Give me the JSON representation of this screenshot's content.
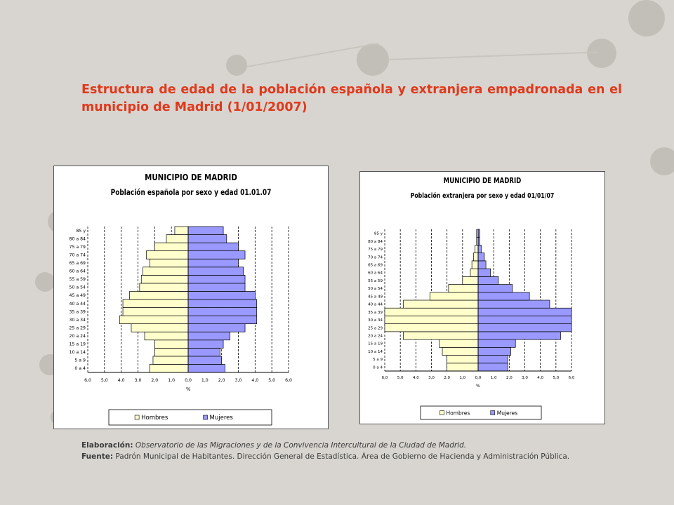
{
  "title": "Estructura de edad de la población española y extranjera empadronada en el municipio de Madrid (1/01/2007)",
  "footer": {
    "elab_label": "Elaboración:",
    "elab_text": "Observatorio de las Migraciones y de la Convivencia Intercultural de la Ciudad de Madrid.",
    "source_label": "Fuente:",
    "source_text": "Padrón Municipal de Habitantes. Dirección General de Estadística. Área de Gobierno de Hacienda y Administración Pública."
  },
  "colors": {
    "background": "#d8d5d0",
    "title": "#e0391c",
    "hombres": "#ffffcc",
    "mujeres": "#9999ff"
  },
  "chart_data": [
    {
      "type": "bar",
      "orientation": "horizontal-pyramid",
      "title": "MUNICIPIO DE MADRID",
      "subtitle": "Población española por sexo y edad 01.01.07",
      "xlabel": "%",
      "xlim": [
        -6.0,
        6.0
      ],
      "xticks": [
        "6,0",
        "5,0",
        "4,0",
        "3,0",
        "2,0",
        "1,0",
        "0,0",
        "1,0",
        "2,0",
        "3,0",
        "4,0",
        "5,0",
        "6,0"
      ],
      "categories": [
        "0 a 4",
        "5 a 9",
        "10 a 14",
        "15 a 19",
        "20 a 24",
        "25 a 29",
        "30 a 34",
        "35 a 39",
        "40 a 44",
        "45 a 49",
        "50 a 54",
        "55 a 59",
        "60 a 64",
        "65 a 69",
        "70 a 74",
        "75 a 79",
        "80 a 84",
        "85 y"
      ],
      "category_labels": [
        "0 a 4",
        "5 a 9",
        "10 a 14",
        "15 a 19",
        "20 a 24",
        "25 a 29",
        "30 a 34",
        "35 a 39",
        "40 a 44",
        "45 a 49",
        "50 a 54",
        "55 a 59",
        "60 a 64",
        "65 a 69",
        "70 a 74",
        "75 a 79",
        "80 a 84",
        "85 y"
      ],
      "series": [
        {
          "name": "Hombres",
          "values": [
            2.3,
            2.1,
            2.0,
            2.0,
            2.6,
            3.4,
            4.1,
            3.9,
            3.9,
            3.5,
            2.9,
            2.8,
            2.7,
            2.3,
            2.5,
            2.0,
            1.3,
            0.8
          ]
        },
        {
          "name": "Mujeres",
          "values": [
            2.2,
            2.0,
            1.9,
            2.1,
            2.5,
            3.4,
            4.1,
            4.1,
            4.1,
            4.0,
            3.4,
            3.4,
            3.3,
            3.0,
            3.4,
            3.0,
            2.3,
            2.1
          ]
        }
      ],
      "legend": [
        "Hombres",
        "Mujeres"
      ],
      "legend_position": "bottom"
    },
    {
      "type": "bar",
      "orientation": "horizontal-pyramid",
      "title": "MUNICIPIO DE MADRID",
      "subtitle": "Población extranjera por sexo y edad 01/01/07",
      "xlabel": "%",
      "xlim": [
        -6.0,
        6.0
      ],
      "xticks": [
        "6,0",
        "5,0",
        "4,0",
        "3,0",
        "2,0",
        "1,0",
        "0,0",
        "1,0",
        "2,0",
        "3,0",
        "4,0",
        "5,0",
        "6,0"
      ],
      "categories": [
        "0 a 4",
        "5 a 9",
        "10 a 14",
        "15 a 19",
        "20 a 24",
        "25 a 29",
        "30 a 34",
        "35 a 39",
        "40 a 44",
        "45 a 49",
        "50 a 54",
        "55 a 59",
        "60 a 64",
        "65 a 69",
        "70 a 74",
        "75 a 79",
        "80 a 84",
        "85 y"
      ],
      "category_labels": [
        "0 a 4",
        "5 a 9",
        "10 a 14",
        "15 a 19",
        "20 a 24",
        "25 a 29",
        "30 a 34",
        "35 a 39",
        "40 a 44",
        "45 a 49",
        "50 a 54",
        "55 a 59",
        "60 a 64",
        "65 a 69",
        "70 a 74",
        "75 a 79",
        "80 a 84",
        "85 y"
      ],
      "series": [
        {
          "name": "Hombres",
          "values": [
            2.0,
            2.0,
            2.3,
            2.5,
            4.8,
            6.2,
            6.5,
            6.2,
            4.8,
            3.1,
            1.9,
            1.0,
            0.5,
            0.4,
            0.3,
            0.2,
            0.1,
            0.1
          ]
        },
        {
          "name": "Mujeres",
          "values": [
            1.9,
            1.9,
            2.1,
            2.4,
            5.3,
            6.1,
            6.3,
            6.3,
            4.6,
            3.3,
            2.2,
            1.3,
            0.8,
            0.5,
            0.4,
            0.2,
            0.1,
            0.1
          ]
        }
      ],
      "legend": [
        "Hombres",
        "Mujeres"
      ],
      "legend_position": "bottom"
    }
  ]
}
